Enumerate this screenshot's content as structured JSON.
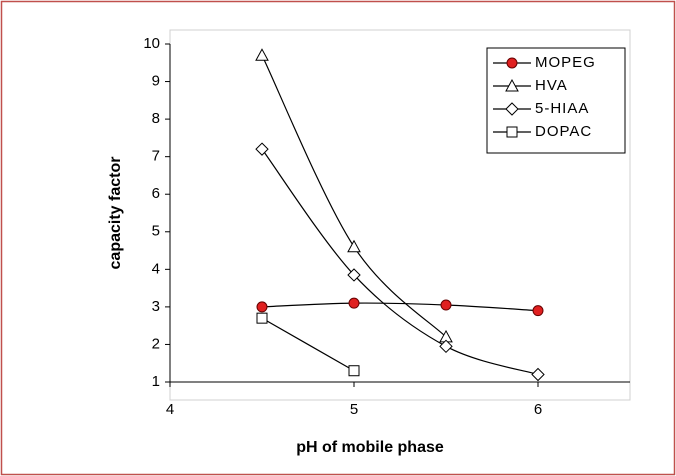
{
  "chart_data": {
    "type": "line",
    "x_label": "pH of mobile phase",
    "y_label": "capacity factor",
    "x": [
      4.5,
      5,
      5.5,
      6
    ],
    "series": [
      {
        "name": "MOPEG",
        "color": "#e02020",
        "marker": "circle",
        "values": [
          3.0,
          3.1,
          3.05,
          2.9
        ]
      },
      {
        "name": "HVA",
        "color": "#ffffff",
        "marker": "triangle",
        "values": [
          9.7,
          4.6,
          2.2,
          null
        ]
      },
      {
        "name": "5-HIAA",
        "color": "#ffffff",
        "marker": "diamond",
        "values": [
          7.2,
          3.85,
          1.95,
          1.2
        ]
      },
      {
        "name": "DOPAC",
        "color": "#ffffff",
        "marker": "square",
        "values": [
          2.7,
          1.3,
          null,
          null
        ]
      }
    ],
    "xlim": [
      4,
      6.5
    ],
    "xticks": [
      4,
      5,
      6
    ],
    "ylim": [
      1,
      10
    ],
    "yticks": [
      1,
      2,
      3,
      4,
      5,
      6,
      7,
      8,
      9,
      10
    ],
    "legend": "top-right",
    "smooth": true
  }
}
